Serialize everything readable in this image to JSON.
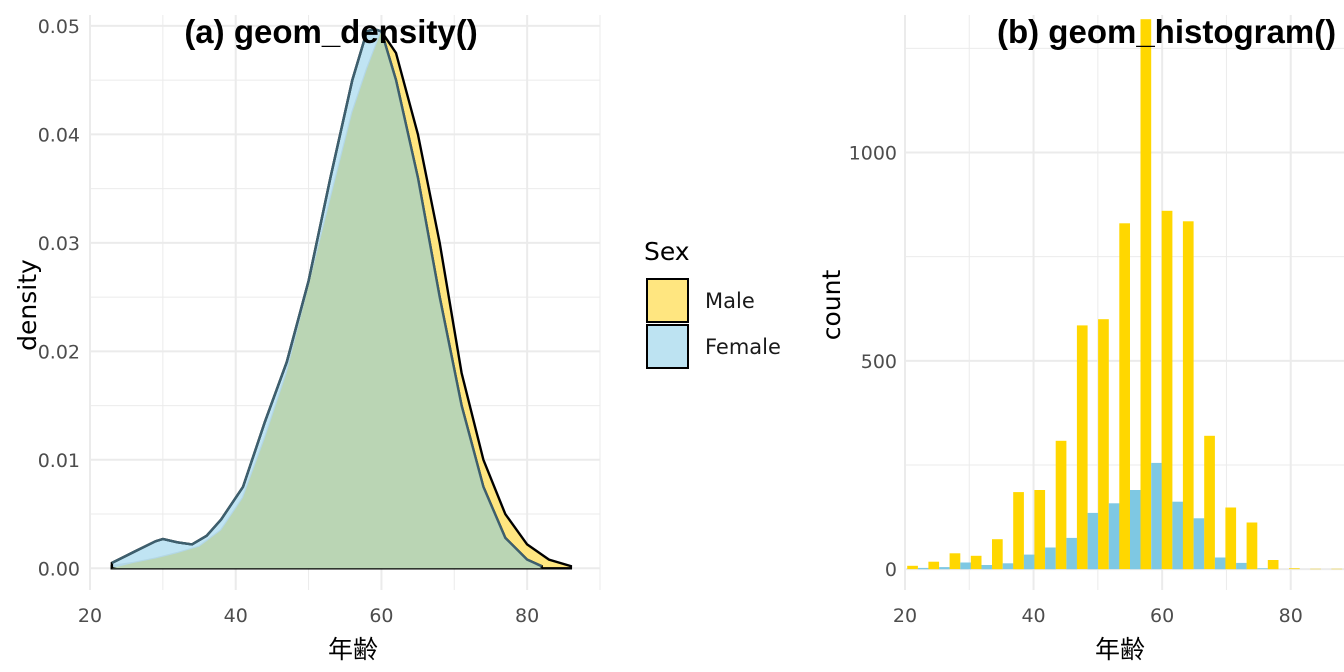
{
  "colors": {
    "male": "#FFD700",
    "male_fill": "#FFE680",
    "female": "#7EC8E3",
    "female_fill": "#BDE3F2",
    "overlap_fill": "#BAD5B4",
    "grid": "#EBEBEB"
  },
  "legend": {
    "title": "Sex",
    "items": [
      {
        "label": "Male",
        "color": "#FFE680"
      },
      {
        "label": "Female",
        "color": "#BDE3F2"
      }
    ]
  },
  "chart_data": [
    {
      "type": "area",
      "title": "(a) geom_density()",
      "xlabel": "年齢",
      "ylabel": "density",
      "xlim": [
        20,
        90
      ],
      "ylim": [
        -0.002,
        0.051
      ],
      "x_ticks": [
        20,
        40,
        60,
        80
      ],
      "y_ticks": [
        0.0,
        0.01,
        0.02,
        0.03,
        0.04,
        0.05
      ],
      "y_tick_labels": [
        "0.00",
        "0.01",
        "0.02",
        "0.03",
        "0.04",
        "0.05"
      ],
      "grid": true,
      "series": [
        {
          "name": "Male",
          "x": [
            23,
            26,
            29,
            32,
            35,
            38,
            41,
            44,
            47,
            50,
            53,
            56,
            58,
            60,
            62,
            65,
            68,
            71,
            74,
            77,
            80,
            83,
            86
          ],
          "y": [
            0.0002,
            0.0005,
            0.0009,
            0.0014,
            0.002,
            0.0035,
            0.0065,
            0.012,
            0.018,
            0.026,
            0.034,
            0.042,
            0.046,
            0.0495,
            0.0475,
            0.04,
            0.03,
            0.018,
            0.01,
            0.005,
            0.0022,
            0.0008,
            0.0002
          ]
        },
        {
          "name": "Female",
          "x": [
            23,
            26,
            29,
            30,
            32,
            34,
            36,
            38,
            41,
            44,
            47,
            50,
            53,
            56,
            58,
            59,
            60,
            62,
            65,
            68,
            71,
            74,
            77,
            80,
            82
          ],
          "y": [
            0.0005,
            0.0015,
            0.0025,
            0.0027,
            0.0024,
            0.0022,
            0.003,
            0.0045,
            0.0075,
            0.0135,
            0.019,
            0.0265,
            0.036,
            0.045,
            0.0495,
            0.0497,
            0.0495,
            0.045,
            0.036,
            0.025,
            0.015,
            0.0075,
            0.0028,
            0.0008,
            0.0002
          ]
        }
      ]
    },
    {
      "type": "bar",
      "title": "(b) geom_histogram()",
      "xlabel": "年齢",
      "ylabel": "count",
      "xlim": [
        20,
        90
      ],
      "ylim": [
        -50,
        1330
      ],
      "x_ticks": [
        20,
        40,
        60,
        80
      ],
      "y_ticks": [
        0,
        500,
        1000
      ],
      "grid": true,
      "bin_width": 3.33,
      "categories": [
        22,
        25.3,
        28.6,
        31.9,
        35.2,
        38.5,
        41.8,
        45.1,
        48.4,
        51.7,
        55,
        58.3,
        61.6,
        64.9,
        68.2,
        71.5,
        74.8,
        78.1,
        81.4,
        84.7,
        88
      ],
      "series": [
        {
          "name": "Male",
          "values": [
            8,
            18,
            38,
            32,
            72,
            185,
            190,
            308,
            585,
            600,
            830,
            1320,
            860,
            835,
            320,
            148,
            112,
            22,
            2,
            1,
            1
          ]
        },
        {
          "name": "Female",
          "values": [
            3,
            5,
            16,
            10,
            14,
            35,
            52,
            75,
            135,
            158,
            190,
            255,
            162,
            122,
            28,
            15,
            2,
            0,
            0,
            0,
            0
          ]
        }
      ]
    }
  ]
}
